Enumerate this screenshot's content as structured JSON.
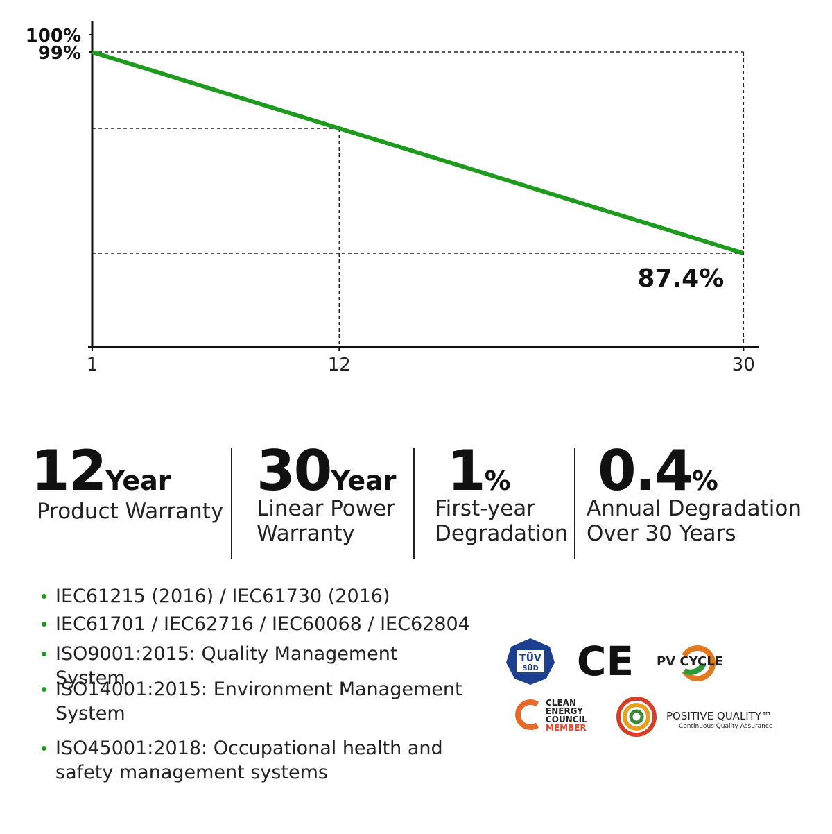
{
  "chart_data": {
    "type": "line",
    "color": "#1e9a1e",
    "x": [
      1,
      12,
      30
    ],
    "values": [
      99,
      94.6,
      87.4
    ],
    "value_labels": [
      null,
      null,
      "87.4%"
    ],
    "xlim": [
      1,
      30.7
    ],
    "xticks": [
      1,
      12,
      30
    ],
    "ylim": [
      82,
      100.8
    ],
    "yticks": [
      {
        "value": 99,
        "label": "99%"
      },
      {
        "value": 100,
        "label": "100%"
      }
    ]
  },
  "stats": [
    {
      "number": "12",
      "unit": "Year",
      "caption": [
        "Product Warranty"
      ]
    },
    {
      "number": "30",
      "unit": "Year",
      "caption": [
        "Linear Power",
        "Warranty"
      ]
    },
    {
      "number": "1",
      "unit": "%",
      "caption": [
        "First-year",
        "Degradation"
      ]
    },
    {
      "number": "0.4",
      "unit": "%",
      "caption": [
        "Annual Degradation",
        "Over 30 Years"
      ]
    }
  ],
  "certifications": [
    "IEC61215 (2016) / IEC61730 (2016)",
    "IEC61701 / IEC62716 / IEC60068 / IEC62804",
    "ISO9001:2015: Quality Management System",
    "ISO14001:2015: Environment Management System",
    "ISO45001:2018: Occupational health and safety management systems"
  ],
  "logos": {
    "tuv": [
      "TÜV",
      "SÜD"
    ],
    "ce": "CE",
    "pv_cycle": "PV CYCLE",
    "cec": [
      "CLEAN",
      "ENERGY",
      "COUNCIL",
      "MEMBER"
    ],
    "positive_quality": "POSITIVE QUALITY™",
    "positive_quality_sub": "Continuous Quality Assurance"
  }
}
